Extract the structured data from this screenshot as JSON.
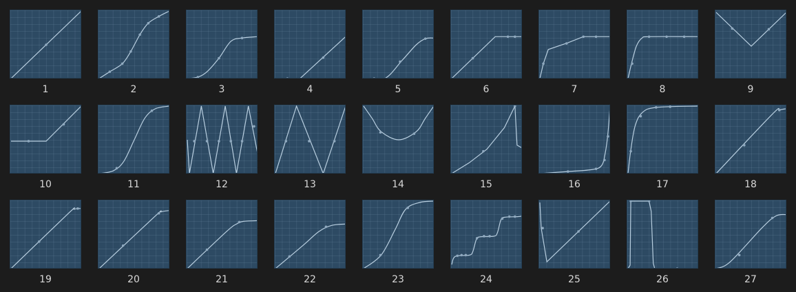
{
  "presets": [
    {
      "label": "1",
      "curve": "linear"
    },
    {
      "label": "2",
      "curve": "ease-steps"
    },
    {
      "label": "3",
      "curve": "ramp-ease-out-top"
    },
    {
      "label": "4",
      "curve": "delayed-linear"
    },
    {
      "label": "5",
      "curve": "delayed-ease-out"
    },
    {
      "label": "6",
      "curve": "linear-then-hold"
    },
    {
      "label": "7",
      "curve": "fast-rise-then-slope"
    },
    {
      "label": "8",
      "curve": "quick-ease-out-hold"
    },
    {
      "label": "9",
      "curve": "v-shape"
    },
    {
      "label": "10",
      "curve": "hold-then-linear"
    },
    {
      "label": "11",
      "curve": "s-curve"
    },
    {
      "label": "12",
      "curve": "zigzag-fast"
    },
    {
      "label": "13",
      "curve": "zigzag-slow"
    },
    {
      "label": "14",
      "curve": "u-shape"
    },
    {
      "label": "15",
      "curve": "ease-in-drop"
    },
    {
      "label": "16",
      "curve": "exponential-in"
    },
    {
      "label": "17",
      "curve": "exponential-out"
    },
    {
      "label": "18",
      "curve": "linear-soft-end"
    },
    {
      "label": "19",
      "curve": "linear-plateau-end"
    },
    {
      "label": "20",
      "curve": "linear-plateau-end-2"
    },
    {
      "label": "21",
      "curve": "linear-ease-top"
    },
    {
      "label": "22",
      "curve": "ease-out-wide"
    },
    {
      "label": "23",
      "curve": "ease-in-out"
    },
    {
      "label": "24",
      "curve": "staircase"
    },
    {
      "label": "25",
      "curve": "spike-then-linear"
    },
    {
      "label": "26",
      "curve": "square-pulse"
    },
    {
      "label": "27",
      "curve": "ease-in-out-late"
    }
  ],
  "colors": {
    "curve": "#b9cfe0",
    "keypoint": "#8fa9bf",
    "background": "#1c1c1c",
    "tile": "#2d4a63",
    "label": "#d8d8d8"
  }
}
